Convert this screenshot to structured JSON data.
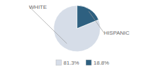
{
  "chart_data": {
    "type": "pie",
    "categories": [
      "WHITE",
      "HISPANIC"
    ],
    "values": [
      81.3,
      18.8
    ],
    "value_labels": [
      "81.3%",
      "18.8%"
    ],
    "colors": [
      "#d6dde8",
      "#2e6080"
    ],
    "legend": "bottom"
  }
}
